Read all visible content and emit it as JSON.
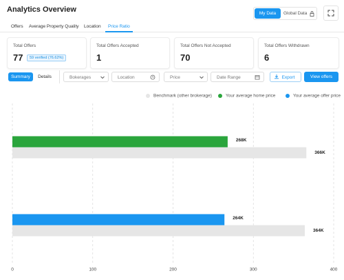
{
  "header": {
    "title": "Analytics Overview",
    "toggle": [
      "My Data",
      "Global Data"
    ]
  },
  "tabs": [
    "Offers",
    "Average Property Quality",
    "Location",
    "Price Ratio"
  ],
  "cards": [
    {
      "label": "Total Offers",
      "value": 77,
      "badge": "59 verified (76.62%)"
    },
    {
      "label": "Total Offers Accepted",
      "value": 1
    },
    {
      "label": "Total Offers Not Accepted",
      "value": 70
    },
    {
      "label": "Total Offers Withdrawn",
      "value": 6
    }
  ],
  "filters": {
    "views": [
      "Summary",
      "Details"
    ],
    "selects": [
      "Bokerages",
      "Location",
      "Price",
      "Date Range"
    ],
    "export": "Export",
    "view_offers": "View offers"
  },
  "chart": {
    "type": "bar",
    "orientation": "horizontal",
    "series": [
      {
        "name": "Benchmark (other brokerage)",
        "color": "#e6e6e6",
        "values": [
          366,
          364
        ],
        "value_labels": [
          "366K",
          "364K"
        ]
      },
      {
        "name": "Your average home price",
        "color": "#2aa53c",
        "values": [
          268,
          null
        ],
        "value_labels": [
          "268K",
          null
        ]
      },
      {
        "name": "Your average offer price",
        "color": "#1a96f0",
        "values": [
          null,
          264
        ],
        "value_labels": [
          null,
          "264K"
        ]
      }
    ],
    "xlim": [
      0,
      400
    ],
    "xticks": [
      0,
      100,
      200,
      300,
      400
    ],
    "grid": true
  }
}
